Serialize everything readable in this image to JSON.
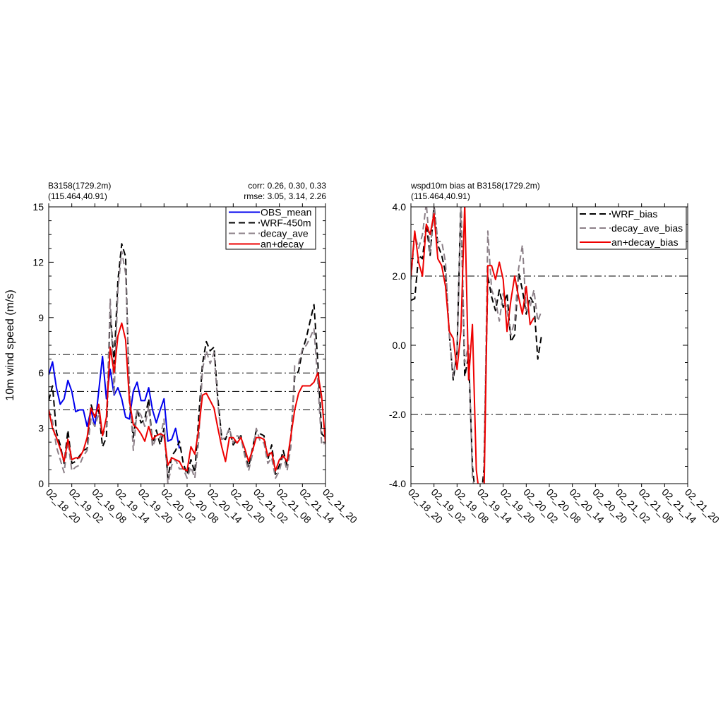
{
  "colors": {
    "obs": "#0000ee",
    "wrf": "#000000",
    "decay": "#8c8088",
    "andecay": "#ee0000",
    "refline": "#000000"
  },
  "left_panel": {
    "title_line1": "B3158(1729.2m)",
    "title_line2": "(115.464,40.91)",
    "stats_line1": "corr:  0.26, 0.30, 0.33",
    "stats_line2": "rmse: 3.05, 3.14, 2.26",
    "ylabel": "10m wind speed (m/s)"
  },
  "right_panel": {
    "title_line1": "wspd10m bias at B3158(1729.2m)",
    "title_line2": "(115.464,40.91)"
  },
  "chart_data": [
    {
      "type": "line",
      "title": "B3158(1729.2m) (115.464,40.91)",
      "ylabel": "10m wind speed (m/s)",
      "ylim": [
        0,
        15
      ],
      "yticks": [
        0,
        3,
        6,
        9,
        12,
        15
      ],
      "xlim": [
        0,
        72
      ],
      "xticks": [
        0,
        6,
        12,
        18,
        24,
        30,
        36,
        42,
        48,
        54,
        60,
        66,
        72
      ],
      "xticklabels": [
        "02_18_20",
        "02_19_02",
        "02_19_08",
        "02_19_14",
        "02_19_20",
        "02_20_02",
        "02_20_08",
        "02_20_14",
        "02_20_20",
        "02_21_02",
        "02_21_08",
        "02_21_14",
        "02_21_20"
      ],
      "reference_lines": [
        4,
        5,
        6,
        7
      ],
      "legend_position": "top-right",
      "series": [
        {
          "name": "OBS_mean",
          "style": "solid",
          "color": "obs",
          "x": [
            0,
            1,
            2,
            3,
            4,
            5,
            6,
            7,
            8,
            9,
            10,
            11,
            12,
            13,
            14,
            15,
            16,
            17,
            18,
            19,
            20,
            21,
            22,
            23,
            24,
            25,
            26,
            27,
            28,
            29,
            30,
            31,
            32,
            33,
            34
          ],
          "values": [
            5.9,
            6.6,
            5.2,
            4.3,
            4.6,
            5.6,
            5.0,
            3.9,
            4.0,
            4.0,
            3.1,
            4.0,
            3.1,
            5.0,
            6.9,
            4.6,
            6.2,
            4.8,
            5.2,
            4.6,
            3.6,
            3.5,
            5.0,
            5.5,
            4.5,
            4.5,
            5.2,
            4.0,
            3.3,
            4.0,
            4.6,
            2.3,
            2.4,
            3.0,
            1.9
          ]
        },
        {
          "name": "WRF-450m",
          "style": "dashed",
          "color": "wrf",
          "x": [
            0,
            1,
            2,
            3,
            4,
            5,
            6,
            7,
            8,
            9,
            10,
            11,
            12,
            13,
            14,
            15,
            16,
            17,
            18,
            19,
            20,
            21,
            22,
            23,
            24,
            25,
            26,
            27,
            28,
            29,
            30,
            31,
            32,
            33,
            34,
            35,
            36,
            37,
            38,
            39,
            40,
            41,
            42,
            43,
            44,
            45,
            46,
            47,
            48,
            49,
            50,
            51,
            52,
            53,
            54,
            55,
            56,
            57,
            58,
            59,
            60,
            61,
            62,
            63,
            64,
            65,
            66,
            67,
            68,
            69,
            70,
            71,
            72
          ],
          "values": [
            4.5,
            5.3,
            2.8,
            2.1,
            1.1,
            2.9,
            1.1,
            1.2,
            1.5,
            1.8,
            1.9,
            4.3,
            3.6,
            4.0,
            2.0,
            2.5,
            9.4,
            6.5,
            11.0,
            13.0,
            12.3,
            4.5,
            2.5,
            4.0,
            3.3,
            3.5,
            4.6,
            2.1,
            2.9,
            2.1,
            3.0,
            0.3,
            1.5,
            1.8,
            2.3,
            1.1,
            0.5,
            1.3,
            0.6,
            3.5,
            6.5,
            7.7,
            7.2,
            7.4,
            4.6,
            2.5,
            2.4,
            3.0,
            2.1,
            2.4,
            2.6,
            1.6,
            0.9,
            1.9,
            2.9,
            2.7,
            2.6,
            1.3,
            2.1,
            0.5,
            1.0,
            1.8,
            1.0,
            2.5,
            5.8,
            6.1,
            7.2,
            7.9,
            8.8,
            9.7,
            6.6,
            2.7,
            2.5
          ]
        },
        {
          "name": "decay_ave",
          "style": "dashed",
          "color": "decay",
          "x": [
            0,
            1,
            2,
            3,
            4,
            5,
            6,
            7,
            8,
            9,
            10,
            11,
            12,
            13,
            14,
            15,
            16,
            17,
            18,
            19,
            20,
            21,
            22,
            23,
            24,
            25,
            26,
            27,
            28,
            29,
            30,
            31,
            32,
            33,
            34,
            35,
            36,
            37,
            38,
            39,
            40,
            41,
            42,
            43,
            44,
            45,
            46,
            47,
            48,
            49,
            50,
            51,
            52,
            53,
            54,
            55,
            56,
            57,
            58,
            59,
            60,
            61,
            62,
            63,
            64,
            65,
            66,
            67,
            68,
            69,
            70,
            71,
            72
          ],
          "values": [
            4.0,
            3.4,
            2.0,
            1.3,
            0.6,
            2.3,
            0.7,
            0.9,
            1.0,
            1.5,
            1.8,
            3.5,
            3.1,
            3.8,
            2.6,
            3.1,
            10.0,
            4.8,
            10.5,
            12.6,
            11.4,
            5.3,
            1.8,
            4.0,
            3.7,
            3.1,
            4.2,
            2.0,
            2.5,
            2.5,
            3.5,
            0.0,
            1.0,
            1.3,
            0.8,
            0.8,
            0.3,
            0.9,
            0.3,
            2.3,
            6.2,
            7.2,
            6.5,
            7.1,
            4.3,
            2.4,
            2.5,
            3.0,
            2.2,
            2.6,
            2.5,
            1.5,
            0.7,
            1.6,
            3.0,
            2.3,
            2.2,
            1.1,
            1.4,
            0.3,
            0.7,
            1.5,
            0.7,
            2.0,
            6.4,
            6.5,
            7.3,
            7.5,
            7.9,
            8.4,
            5.5,
            2.1,
            2.2
          ]
        },
        {
          "name": "an+decay",
          "style": "solid",
          "color": "andecay",
          "x": [
            0,
            1,
            2,
            3,
            4,
            5,
            6,
            7,
            8,
            9,
            10,
            11,
            12,
            13,
            14,
            15,
            16,
            17,
            18,
            19,
            20,
            21,
            22,
            23,
            24,
            25,
            26,
            27,
            28,
            29,
            30,
            31,
            32,
            33,
            34,
            35,
            36,
            37,
            38,
            39,
            40,
            41,
            42,
            43,
            44,
            45,
            46,
            47,
            48,
            49,
            50,
            51,
            52,
            53,
            54,
            55,
            56,
            57,
            58,
            59,
            60,
            61,
            62,
            63,
            64,
            65,
            66,
            67,
            68,
            69,
            70,
            71,
            72
          ],
          "values": [
            4.0,
            3.0,
            2.5,
            1.9,
            1.2,
            2.4,
            1.3,
            1.4,
            1.4,
            1.8,
            2.5,
            4.1,
            3.6,
            4.3,
            2.6,
            3.6,
            7.4,
            6.0,
            8.0,
            8.7,
            7.8,
            4.5,
            3.2,
            3.0,
            2.7,
            2.3,
            3.1,
            2.4,
            2.6,
            2.7,
            2.6,
            1.0,
            1.4,
            1.3,
            1.2,
            0.8,
            0.7,
            2.0,
            1.6,
            2.9,
            4.8,
            4.9,
            4.5,
            4.1,
            3.0,
            2.0,
            1.2,
            2.5,
            2.5,
            2.2,
            2.5,
            1.9,
            1.2,
            1.8,
            2.5,
            2.5,
            2.4,
            1.5,
            1.7,
            0.7,
            1.3,
            1.5,
            1.2,
            2.6,
            4.0,
            4.9,
            5.3,
            5.3,
            5.3,
            5.5,
            6.0,
            4.7,
            2.2
          ]
        }
      ]
    },
    {
      "type": "line",
      "title": "wspd10m bias at B3158(1729.2m) (115.464,40.91)",
      "ylim": [
        -4,
        4
      ],
      "yticks": [
        -4,
        -2,
        0,
        2,
        4
      ],
      "yticklabels": [
        "-4.0",
        "-2.0",
        "0.0",
        "2.0",
        "4.0"
      ],
      "xlim": [
        0,
        72
      ],
      "xticks": [
        0,
        6,
        12,
        18,
        24,
        30,
        36,
        42,
        48,
        54,
        60,
        66,
        72
      ],
      "xticklabels": [
        "02_18_20",
        "02_19_02",
        "02_19_08",
        "02_19_14",
        "02_19_20",
        "02_20_02",
        "02_20_08",
        "02_20_14",
        "02_20_20",
        "02_21_02",
        "02_21_08",
        "02_21_14",
        "02_21_20"
      ],
      "reference_lines": [
        -2,
        2
      ],
      "legend_position": "top-right",
      "series": [
        {
          "name": "WRF_bias",
          "style": "dashed",
          "color": "wrf",
          "x": [
            0,
            1,
            2,
            3,
            4,
            5,
            6,
            7,
            8,
            9,
            10,
            11,
            12,
            13,
            14,
            15,
            16,
            17,
            18,
            19,
            20,
            21,
            22,
            23,
            24,
            25,
            26,
            27,
            28,
            29,
            30,
            31,
            32,
            33,
            34,
            35
          ],
          "values": [
            1.3,
            1.35,
            2.6,
            2.5,
            3.5,
            2.6,
            4.0,
            2.9,
            2.6,
            2.1,
            0.3,
            -1.0,
            -0.2,
            4.2,
            -0.9,
            -0.3,
            -3.5,
            -4.6,
            -4.7,
            -3.6,
            2.0,
            1.4,
            1.0,
            1.6,
            1.1,
            1.5,
            0.1,
            0.3,
            2.1,
            1.6,
            0.9,
            1.4,
            1.2,
            -0.4,
            0.3,
            null
          ]
        },
        {
          "name": "decay_ave_bias",
          "style": "dashed",
          "color": "decay",
          "x": [
            0,
            1,
            2,
            3,
            4,
            5,
            6,
            7,
            8,
            9,
            10,
            11,
            12,
            13,
            14,
            15,
            16,
            17,
            18,
            19,
            20,
            21,
            22,
            23,
            24,
            25,
            26,
            27,
            28,
            29,
            30,
            31,
            32,
            33,
            34,
            35
          ],
          "values": [
            1.9,
            3.2,
            2.8,
            3.2,
            4.1,
            2.7,
            4.1,
            3.0,
            3.0,
            2.4,
            0.3,
            -0.9,
            -0.2,
            4.0,
            -0.5,
            0.0,
            -3.8,
            -4.5,
            -4.6,
            -4.0,
            3.3,
            1.6,
            1.3,
            0.7,
            1.5,
            1.0,
            0.3,
            0.7,
            2.2,
            2.9,
            1.0,
            1.1,
            1.6,
            0.7,
            1.0,
            null
          ]
        },
        {
          "name": "an+decay_bias",
          "style": "solid",
          "color": "andecay",
          "x": [
            0,
            1,
            2,
            3,
            4,
            5,
            6,
            7,
            8,
            9,
            10,
            11,
            12,
            13,
            14,
            15,
            16,
            17,
            18,
            19,
            20,
            21,
            22,
            23,
            24,
            25,
            26,
            27,
            28,
            29,
            30,
            31,
            32,
            33,
            34,
            35
          ],
          "values": [
            2.0,
            3.3,
            2.4,
            2.0,
            3.5,
            3.2,
            3.8,
            2.5,
            2.3,
            1.7,
            0.4,
            0.2,
            -0.7,
            0.4,
            4.1,
            -1.0,
            0.6,
            -3.6,
            -4.5,
            -4.5,
            2.3,
            2.3,
            1.9,
            2.4,
            1.9,
            0.4,
            1.3,
            2.0,
            1.4,
            0.9,
            1.7,
            0.6,
            0.8,
            null,
            null,
            null
          ]
        }
      ]
    }
  ]
}
